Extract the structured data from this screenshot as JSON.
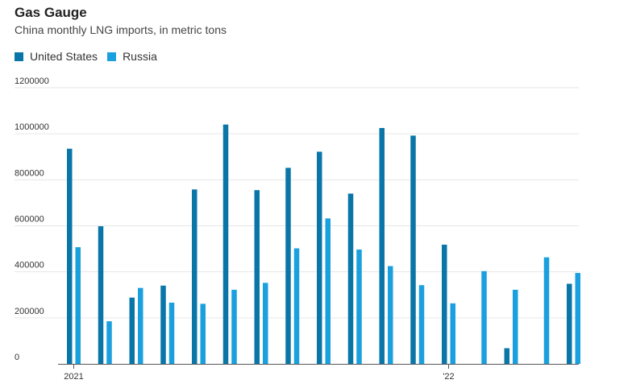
{
  "chart_data": {
    "type": "bar",
    "title": "Gas Gauge",
    "subtitle": "China monthly LNG imports, in metric tons",
    "xlabel": "",
    "ylabel": "",
    "ylim": [
      0,
      1200000
    ],
    "yticks": [
      0,
      200000,
      400000,
      600000,
      800000,
      1000000,
      1200000
    ],
    "ytick_labels": [
      "0",
      "200000",
      "400000",
      "600000",
      "800000",
      "1000000",
      "1200000"
    ],
    "categories": [
      "2021-01",
      "2021-02",
      "2021-03",
      "2021-04",
      "2021-05",
      "2021-06",
      "2021-07",
      "2021-08",
      "2021-09",
      "2021-10",
      "2021-11",
      "2021-12",
      "2022-01",
      "2022-02",
      "2022-03",
      "2022-04",
      "2022-05"
    ],
    "x_tick_labels": [
      {
        "category": "2021-01",
        "label": "2021"
      },
      {
        "category": "2022-01",
        "label": "'22"
      }
    ],
    "series": [
      {
        "name": "United States",
        "color": "#0a76a8",
        "values": [
          935000,
          598000,
          288000,
          340000,
          758000,
          1040000,
          755000,
          852000,
          922000,
          740000,
          1025000,
          992000,
          518000,
          0,
          68000,
          0,
          348000
        ]
      },
      {
        "name": "Russia",
        "color": "#1aa0de",
        "values": [
          507000,
          185000,
          330000,
          266000,
          261000,
          322000,
          352000,
          502000,
          632000,
          497000,
          425000,
          342000,
          263000,
          403000,
          322000,
          463000,
          395000
        ]
      }
    ],
    "grid": true,
    "legend_position": "top-left"
  }
}
